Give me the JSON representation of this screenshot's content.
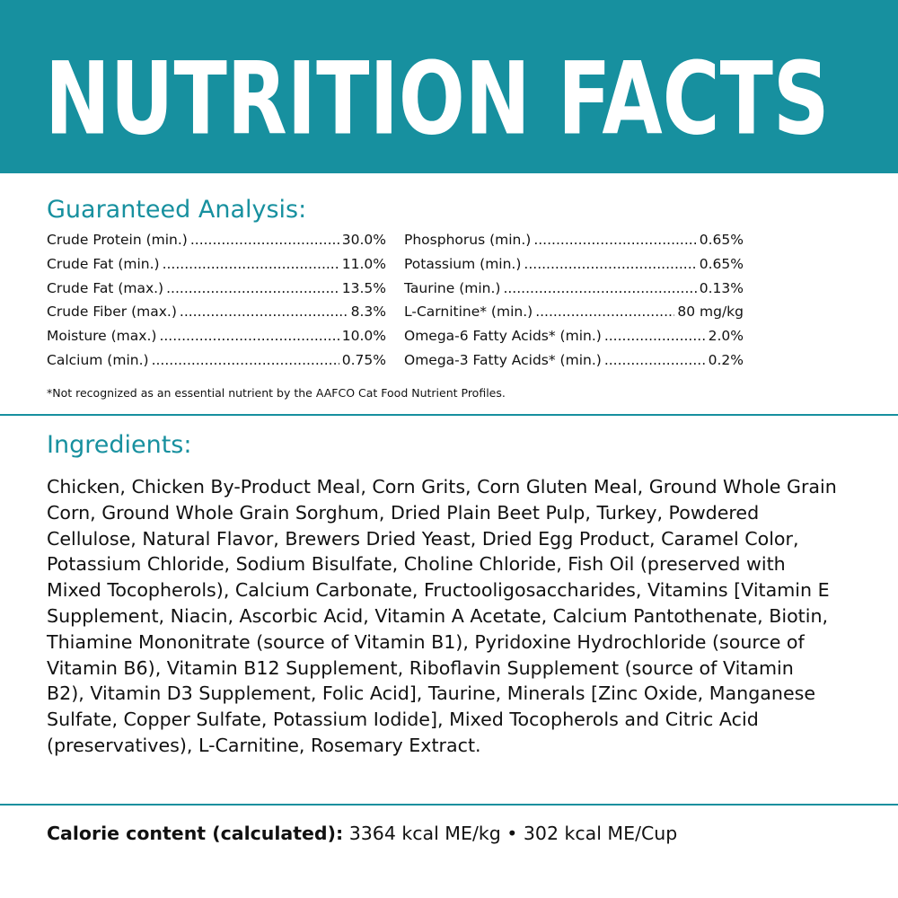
{
  "header": {
    "title": "NUTRITION FACTS"
  },
  "analysis": {
    "title": "Guaranteed Analysis:",
    "left": [
      {
        "name": "Crude Protein (min.)",
        "value": "30.0%"
      },
      {
        "name": "Crude Fat (min.)",
        "value": "11.0%"
      },
      {
        "name": "Crude Fat (max.)",
        "value": "13.5%"
      },
      {
        "name": "Crude Fiber (max.)",
        "value": "8.3%"
      },
      {
        "name": "Moisture (max.)",
        "value": "10.0%"
      },
      {
        "name": "Calcium (min.)",
        "value": "0.75%"
      }
    ],
    "right": [
      {
        "name": "Phosphorus (min.)",
        "value": "0.65%"
      },
      {
        "name": "Potassium (min.)",
        "value": "0.65%"
      },
      {
        "name": "Taurine (min.)",
        "value": "0.13%"
      },
      {
        "name": "L-Carnitine* (min.)",
        "value": "80 mg/kg"
      },
      {
        "name": "Omega-6 Fatty Acids* (min.)",
        "value": "2.0%"
      },
      {
        "name": "Omega-3 Fatty Acids* (min.)",
        "value": "0.2%"
      }
    ],
    "footnote": "*Not recognized as an essential nutrient by the AAFCO Cat Food Nutrient Profiles."
  },
  "ingredients": {
    "title": "Ingredients:",
    "text": "Chicken, Chicken By-Product Meal, Corn Grits, Corn Gluten Meal, Ground Whole Grain Corn, Ground Whole Grain Sorghum, Dried Plain Beet Pulp, Turkey, Powdered Cellulose, Natural Flavor, Brewers Dried Yeast, Dried Egg Product, Caramel Color, Potassium Chloride, Sodium Bisulfate, Choline Chloride, Fish Oil (preserved with Mixed Tocopherols), Calcium Carbonate, Fructooligosaccharides, Vitamins [Vitamin E Supplement, Niacin, Ascorbic Acid, Vitamin A Acetate, Calcium Pantothenate, Biotin, Thiamine Mononitrate (source of Vitamin B1), Pyridoxine Hydrochloride (source of Vitamin B6), Vitamin B12 Supplement, Riboflavin Supplement (source of Vitamin B2), Vitamin D3 Supplement, Folic Acid], Taurine, Minerals [Zinc Oxide, Manganese Sulfate, Copper Sulfate, Potassium Iodide], Mixed Tocopherols and Citric Acid (preservatives), L-Carnitine, Rosemary Extract."
  },
  "calorie": {
    "label": "Calorie content (calculated):",
    "text": "3364 kcal ME/kg • 302 kcal ME/Cup"
  }
}
